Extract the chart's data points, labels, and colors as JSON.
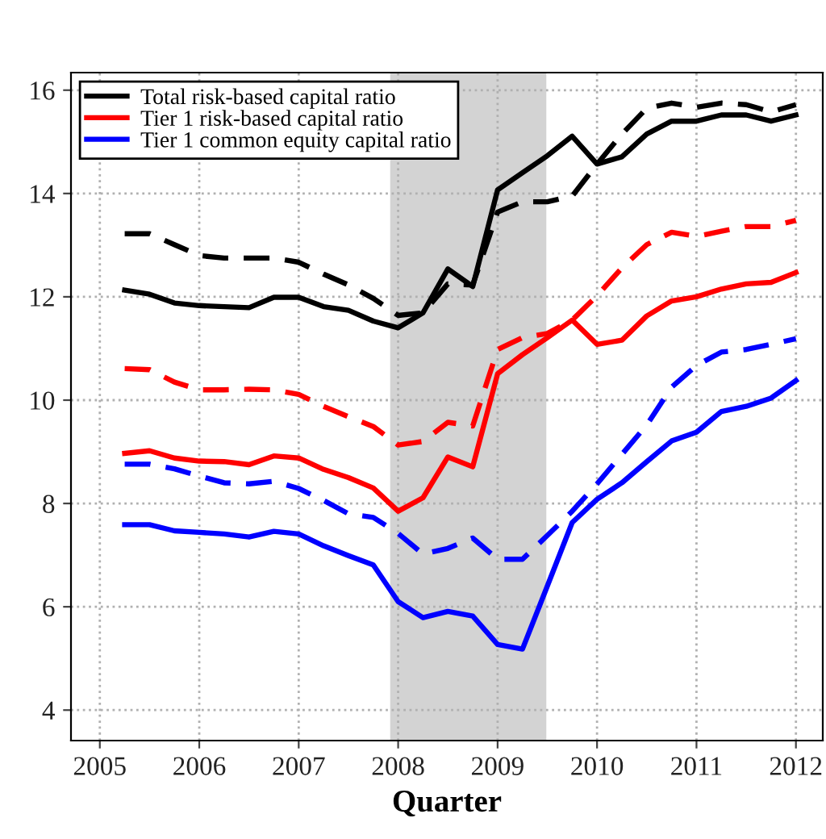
{
  "chart_data": {
    "type": "line",
    "xlabel": "Quarter",
    "x": [
      2005.25,
      2005.5,
      2005.75,
      2006.0,
      2006.25,
      2006.5,
      2006.75,
      2007.0,
      2007.25,
      2007.5,
      2007.75,
      2008.0,
      2008.25,
      2008.5,
      2008.75,
      2009.0,
      2009.25,
      2009.5,
      2009.75,
      2010.0,
      2010.25,
      2010.5,
      2010.75,
      2011.0,
      2011.25,
      2011.5,
      2011.75,
      2012.0
    ],
    "series": [
      {
        "name": "Total risk-based capital ratio",
        "color": "#000000",
        "line_style": "solid",
        "values": [
          12.13,
          12.05,
          11.88,
          11.83,
          11.81,
          11.79,
          11.99,
          11.99,
          11.81,
          11.74,
          11.53,
          11.4,
          11.69,
          12.54,
          12.2,
          14.07,
          14.4,
          14.73,
          15.11,
          14.57,
          14.71,
          15.15,
          15.4,
          15.4,
          15.52,
          15.52,
          15.4,
          15.52
        ]
      },
      {
        "name": "Tier 1 risk-based capital ratio",
        "color": "#ff0000",
        "line_style": "solid",
        "values": [
          8.97,
          9.02,
          8.88,
          8.82,
          8.81,
          8.75,
          8.92,
          8.88,
          8.66,
          8.5,
          8.3,
          7.85,
          8.11,
          8.9,
          8.71,
          10.51,
          10.88,
          11.21,
          11.55,
          11.08,
          11.16,
          11.63,
          11.92,
          12.0,
          12.15,
          12.25,
          12.28,
          12.47
        ]
      },
      {
        "name": "Tier 1 common equity capital ratio",
        "color": "#0000ff",
        "line_style": "solid",
        "values": [
          7.59,
          7.59,
          7.47,
          7.44,
          7.41,
          7.35,
          7.46,
          7.41,
          7.18,
          6.99,
          6.81,
          6.1,
          5.79,
          5.91,
          5.82,
          5.27,
          5.18,
          6.4,
          7.63,
          8.08,
          8.4,
          8.81,
          9.21,
          9.38,
          9.78,
          9.88,
          10.04,
          10.38
        ]
      },
      {
        "color": "#000000",
        "line_style": "dashed",
        "values": [
          13.22,
          13.22,
          13.01,
          12.8,
          12.75,
          12.75,
          12.75,
          12.67,
          12.44,
          12.23,
          11.97,
          11.64,
          11.69,
          12.25,
          12.23,
          13.64,
          13.84,
          13.84,
          13.95,
          14.57,
          15.15,
          15.65,
          15.75,
          15.67,
          15.75,
          15.72,
          15.58,
          15.72
        ]
      },
      {
        "color": "#ff0000",
        "line_style": "dashed",
        "values": [
          10.61,
          10.59,
          10.35,
          10.2,
          10.2,
          10.21,
          10.2,
          10.11,
          9.88,
          9.68,
          9.49,
          9.13,
          9.2,
          9.57,
          9.5,
          10.98,
          11.21,
          11.29,
          11.55,
          12.02,
          12.56,
          13.01,
          13.25,
          13.17,
          13.27,
          13.36,
          13.36,
          13.48
        ]
      },
      {
        "color": "#0000ff",
        "line_style": "dashed",
        "values": [
          8.76,
          8.76,
          8.67,
          8.53,
          8.4,
          8.38,
          8.43,
          8.29,
          8.06,
          7.8,
          7.73,
          7.42,
          7.02,
          7.13,
          7.33,
          6.92,
          6.92,
          7.38,
          7.85,
          8.38,
          8.95,
          9.52,
          10.25,
          10.67,
          10.93,
          10.98,
          11.08,
          11.19
        ]
      }
    ],
    "bands": [
      {
        "axis": "x",
        "from": 2007.92,
        "to": 2009.49,
        "color": "#d3d3d3"
      }
    ],
    "xlim": [
      2004.71,
      2012.27
    ],
    "xticks": [
      2005,
      2006,
      2007,
      2008,
      2009,
      2010,
      2011,
      2012
    ],
    "ylim": [
      3.41,
      16.34
    ],
    "yticks": [
      4,
      6,
      8,
      10,
      12,
      14,
      16
    ],
    "grid": true,
    "legend": "top left",
    "marker": "none"
  }
}
